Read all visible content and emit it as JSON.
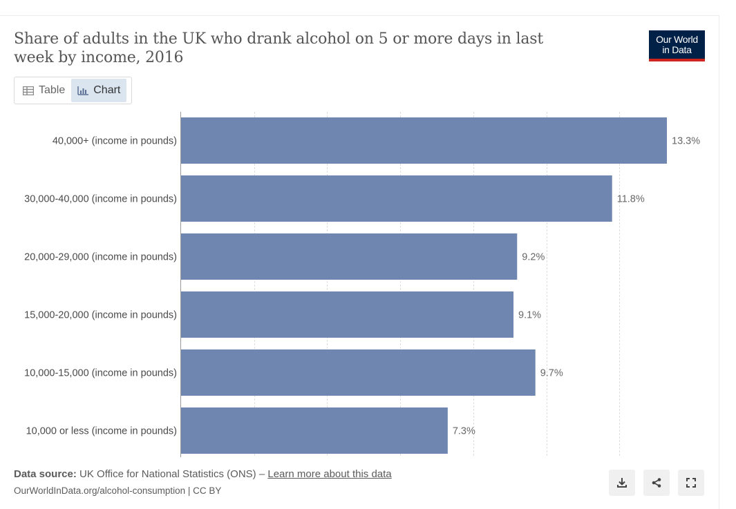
{
  "header": {
    "title": "Share of adults in the UK who drank alcohol on 5 or more days in last week by income, 2016",
    "logo_line1": "Our World",
    "logo_line2": "in Data"
  },
  "tabs": [
    {
      "label": "Table",
      "icon": "table-icon",
      "active": false
    },
    {
      "label": "Chart",
      "icon": "chart-icon",
      "active": true
    }
  ],
  "chart_data": {
    "type": "bar",
    "orientation": "horizontal",
    "categories": [
      "40,000+ (income in pounds)",
      "30,000-40,000 (income in pounds)",
      "20,000-29,000 (income in pounds)",
      "15,000-20,000 (income in pounds)",
      "10,000-15,000 (income in pounds)",
      "10,000 or less (income in pounds)"
    ],
    "values": [
      13.3,
      11.8,
      9.2,
      9.1,
      9.7,
      7.3
    ],
    "value_labels": [
      "13.3%",
      "11.8%",
      "9.2%",
      "9.1%",
      "9.7%",
      "7.3%"
    ],
    "unit": "%",
    "xlim": [
      0,
      13.3
    ],
    "grid": "vertical-dashed",
    "bar_color": "#6f87b0"
  },
  "footer": {
    "source_label": "Data source:",
    "source_text": "UK Office for National Statistics (ONS) –",
    "learn_more": "Learn more about this data",
    "url_text": "OurWorldInData.org/alcohol-consumption | CC BY"
  },
  "actions": [
    {
      "name": "download-icon"
    },
    {
      "name": "share-icon"
    },
    {
      "name": "fullscreen-icon"
    }
  ]
}
